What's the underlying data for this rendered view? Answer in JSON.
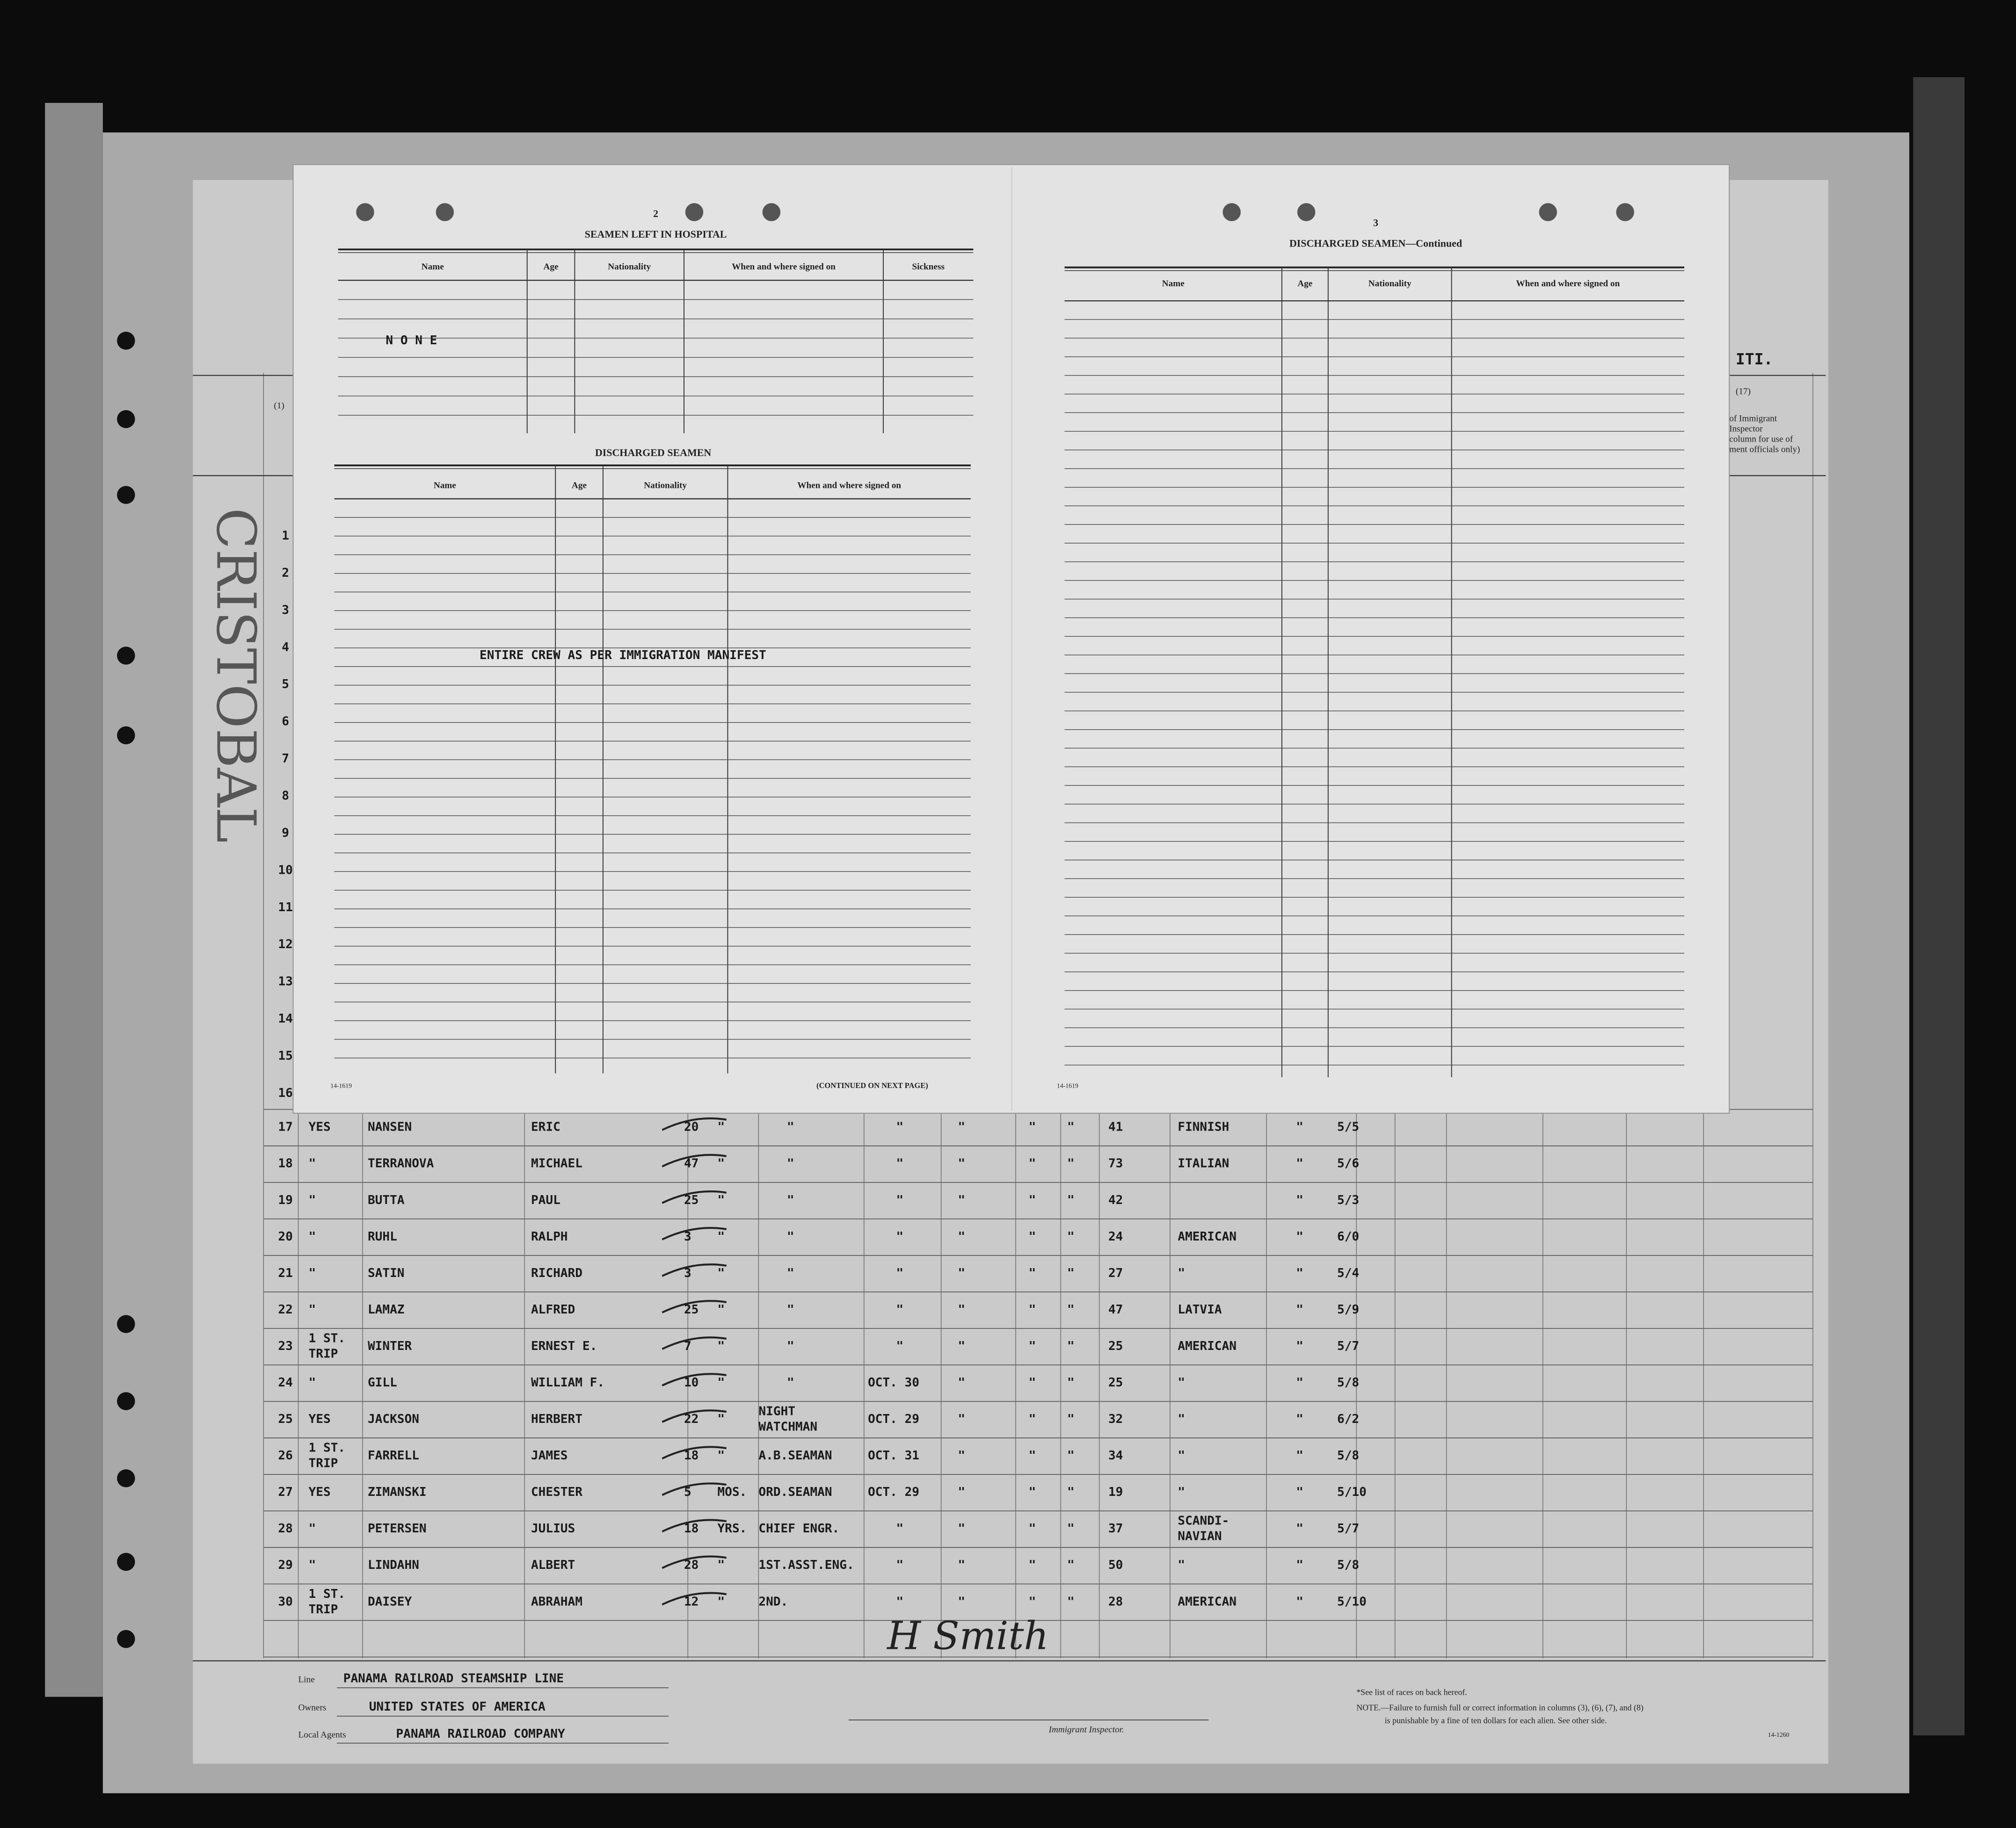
{
  "overlay": {
    "left_page": {
      "page_number": "2",
      "hospital": {
        "title": "SEAMEN LEFT IN HOSPITAL",
        "columns": [
          "Name",
          "Age",
          "Nationality",
          "When and where signed on",
          "Sickness"
        ],
        "entry": "N O N E"
      },
      "discharged": {
        "title": "DISCHARGED SEAMEN",
        "columns": [
          "Name",
          "Age",
          "Nationality",
          "When and where signed on"
        ],
        "note": "ENTIRE CREW AS PER IMMIGRATION MANIFEST"
      },
      "form_number": "14-1619",
      "continued": "(CONTINUED ON NEXT PAGE)"
    },
    "right_page": {
      "page_number": "3",
      "title": "DISCHARGED SEAMEN—Continued",
      "columns": [
        "Name",
        "Age",
        "Nationality",
        "When and where signed on"
      ],
      "form_number": "14-1619"
    }
  },
  "manifest": {
    "margin_numbers": [
      "1",
      "2",
      "3",
      "4",
      "5",
      "6",
      "7",
      "8",
      "9",
      "10",
      "11",
      "12",
      "13",
      "14",
      "15",
      "16"
    ],
    "header_fragments": {
      "column_1": "(1)",
      "column_17": "(17)",
      "port_fragment": "ITI.",
      "inspector_note": [
        "of Immigrant",
        "Inspector",
        "column for use of",
        "ment officials only)"
      ]
    },
    "rows": [
      [
        "17",
        "YES",
        "NANSEN",
        "ERIC",
        "20",
        "\"",
        "\"",
        "\"",
        "\"",
        "\"",
        "\"",
        "41",
        "FINNISH",
        "\"",
        "5/5"
      ],
      [
        "18",
        "\"",
        "TERRANOVA",
        "MICHAEL",
        "47",
        "\"",
        "\"",
        "\"",
        "\"",
        "\"",
        "\"",
        "73",
        "ITALIAN",
        "\"",
        "5/6"
      ],
      [
        "19",
        "\"",
        "BUTTA",
        "PAUL",
        "25",
        "\"",
        "\"",
        "\"",
        "\"",
        "\"",
        "\"",
        "42",
        null,
        "\"",
        "5/3"
      ],
      [
        "20",
        "\"",
        "RUHL",
        "RALPH",
        "3",
        "\"",
        "\"",
        "\"",
        "\"",
        "\"",
        "\"",
        "24",
        "AMERICAN",
        "\"",
        "6/0"
      ],
      [
        "21",
        "\"",
        "SATIN",
        "RICHARD",
        "3",
        "\"",
        "\"",
        "\"",
        "\"",
        "\"",
        "\"",
        "27",
        "\"",
        "\"",
        "5/4"
      ],
      [
        "22",
        "\"",
        "LAMAZ",
        "ALFRED",
        "25",
        "\"",
        "\"",
        "\"",
        "\"",
        "\"",
        "\"",
        "47",
        "LATVIA",
        "\"",
        "5/9"
      ],
      [
        "23",
        [
          "1 ST.",
          "TRIP"
        ],
        "WINTER",
        "ERNEST E.",
        "7",
        "\"",
        "\"",
        "\"",
        "\"",
        "\"",
        "\"",
        "25",
        "AMERICAN",
        "\"",
        "5/7"
      ],
      [
        "24",
        "\"",
        "GILL",
        "WILLIAM F.",
        "10",
        "\"",
        "\"",
        "OCT. 30",
        "\"",
        "\"",
        "\"",
        "25",
        "\"",
        "\"",
        "5/8"
      ],
      [
        "25",
        "YES",
        "JACKSON",
        "HERBERT",
        "22",
        "\"",
        [
          "NIGHT",
          "WATCHMAN"
        ],
        "OCT. 29",
        "\"",
        "\"",
        "\"",
        "32",
        "\"",
        "\"",
        "6/2"
      ],
      [
        "26",
        [
          "1 ST.",
          "TRIP"
        ],
        "FARRELL",
        "JAMES",
        "18",
        "\"",
        "A.B.SEAMAN",
        "OCT. 31",
        "\"",
        "\"",
        "\"",
        "34",
        "\"",
        "\"",
        "5/8"
      ],
      [
        "27",
        "YES",
        "ZIMANSKI",
        "CHESTER",
        "5",
        "MOS.",
        "ORD.SEAMAN",
        "OCT. 29",
        "\"",
        "\"",
        "\"",
        "19",
        "\"",
        "\"",
        "5/10"
      ],
      [
        "28",
        "\"",
        "PETERSEN",
        "JULIUS",
        "18",
        "YRS.",
        "CHIEF ENGR.",
        "\"",
        "\"",
        "\"",
        "\"",
        "37",
        [
          "SCANDI-",
          "NAVIAN"
        ],
        "\"",
        "5/7"
      ],
      [
        "29",
        "\"",
        "LINDAHN",
        "ALBERT",
        "28",
        "\"",
        "1ST.ASST.ENG.",
        "\"",
        "\"",
        "\"",
        "\"",
        "50",
        "\"",
        "\"",
        "5/8"
      ],
      [
        "30",
        [
          "1 ST.",
          "TRIP"
        ],
        "DAISEY",
        "ABRAHAM",
        "12",
        "\"",
        "2ND.",
        "\"",
        "\"",
        "\"",
        "\"",
        "28",
        "AMERICAN",
        "\"",
        "5/10"
      ]
    ],
    "stamp": "CRISTOBAL",
    "signature": "H Smith",
    "footer": {
      "line_label": "Line",
      "line": "PANAMA RAILROAD STEAMSHIP LINE",
      "owners_label": "Owners",
      "owners": "UNITED STATES OF AMERICA",
      "agents_label": "Local Agents",
      "agents": "PANAMA RAILROAD COMPANY",
      "inspector_label": "Immigrant Inspector.",
      "races_note": "*See list of races on back hereof.",
      "fine_note": [
        "NOTE.—Failure to furnish full or correct information in columns (3), (6), (7), and (8)",
        "is punishable by a fine of ten dollars for each alien.  See other side."
      ],
      "form_number": "14-1260"
    }
  }
}
